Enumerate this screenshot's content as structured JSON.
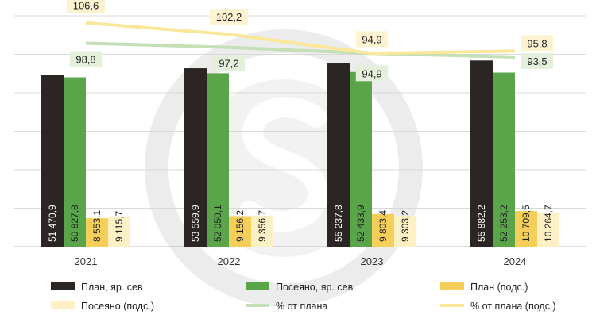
{
  "chart_data": {
    "type": "bar",
    "categories": [
      "2021",
      "2022",
      "2023",
      "2024"
    ],
    "y_left_range": [
      0,
      60000
    ],
    "y_right_range": [
      80,
      110
    ],
    "grid": true,
    "legend_position": "bottom",
    "series": [
      {
        "name": "План, яр. сев",
        "kind": "bar",
        "axis": "left",
        "color": "#2b2624",
        "label_color": "#ffffff",
        "values": [
          51470.9,
          53559.9,
          55237.8,
          55882.2
        ],
        "labels": [
          "51 470,9",
          "53 559,9",
          "55 237,8",
          "55 882,2"
        ]
      },
      {
        "name": "Посеяно, яр. сев",
        "kind": "bar",
        "axis": "left",
        "color": "#5aa54a",
        "label_color": "#1f1f1f",
        "values": [
          50827.8,
          52050.1,
          52433.9,
          52253.2
        ],
        "labels": [
          "50 827,8",
          "52 050,1",
          "52 433,9",
          "52 253,2"
        ]
      },
      {
        "name": "План (подс.)",
        "kind": "bar",
        "axis": "left",
        "color": "#f6cf5a",
        "label_color": "#1f1f1f",
        "values": [
          8553.1,
          9156.2,
          9803.4,
          10709.5
        ],
        "labels": [
          "8 553,1",
          "9 156,2",
          "9 803,4",
          "10 709,5"
        ]
      },
      {
        "name": "Посеяно (подс.)",
        "kind": "bar",
        "axis": "left",
        "color": "#fdf0c4",
        "label_color": "#1f1f1f",
        "values": [
          9115.7,
          9356.7,
          9303.2,
          10264.7
        ],
        "labels": [
          "9 115,7",
          "9 356,7",
          "9 303,2",
          "10 264,7"
        ]
      },
      {
        "name": "% от плана",
        "kind": "line",
        "axis": "right",
        "color": "#c5dfb6",
        "label_bg": "#e4f0dc",
        "values": [
          98.8,
          97.2,
          94.9,
          93.5
        ],
        "labels": [
          "98,8",
          "97,2",
          "94,9",
          "93,5"
        ]
      },
      {
        "name": "% от плана (подс.)",
        "kind": "line",
        "axis": "right",
        "color": "#fbe79a",
        "label_bg": "#fdf3d0",
        "values": [
          106.6,
          102.2,
          94.9,
          95.8
        ],
        "labels": [
          "106,6",
          "102,2",
          "94,9",
          "95,8"
        ]
      }
    ]
  }
}
